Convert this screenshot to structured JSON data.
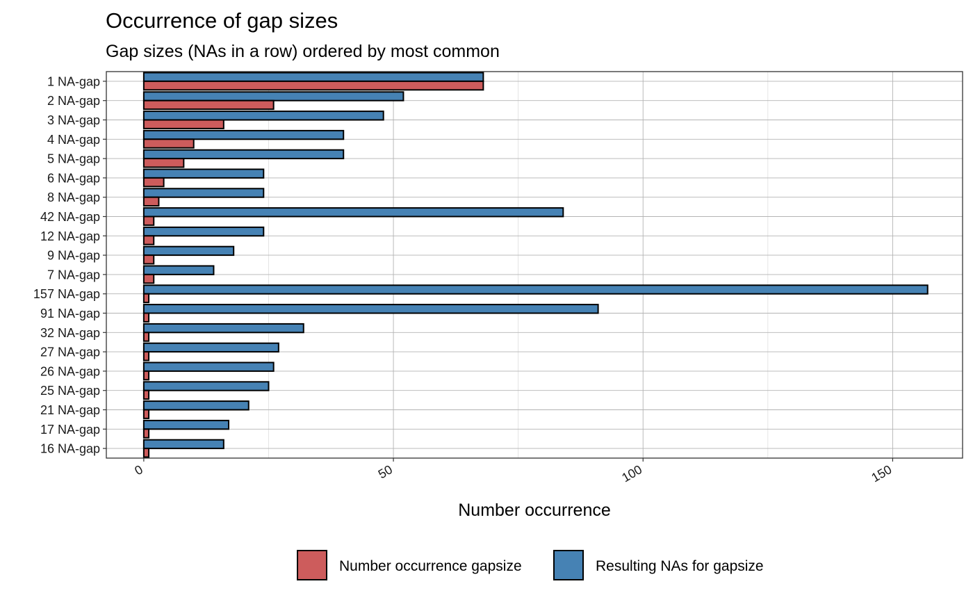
{
  "chart_data": {
    "type": "bar",
    "orientation": "horizontal",
    "title": "Occurrence of gap sizes",
    "subtitle": "Gap sizes (NAs in a row) ordered by most common",
    "xlabel": "Number occurrence",
    "ylabel": "",
    "xlim": [
      -7.5,
      164
    ],
    "x_ticks": [
      0,
      50,
      100,
      150
    ],
    "x_tick_labels": [
      "0",
      "50",
      "100",
      "150"
    ],
    "grid": true,
    "legend_position": "bottom",
    "categories": [
      "1 NA-gap",
      "2 NA-gap",
      "3 NA-gap",
      "4 NA-gap",
      "5 NA-gap",
      "6 NA-gap",
      "8 NA-gap",
      "42 NA-gap",
      "12 NA-gap",
      "9 NA-gap",
      "7 NA-gap",
      "157 NA-gap",
      "91 NA-gap",
      "32 NA-gap",
      "27 NA-gap",
      "26 NA-gap",
      "25 NA-gap",
      "21 NA-gap",
      "17 NA-gap",
      "16 NA-gap"
    ],
    "series": [
      {
        "name": "Number occurrence gapsize",
        "color": "#cd5c5c",
        "values": [
          68,
          26,
          16,
          10,
          8,
          4,
          3,
          2,
          2,
          2,
          2,
          1,
          1,
          1,
          1,
          1,
          1,
          1,
          1,
          1
        ]
      },
      {
        "name": "Resulting NAs for gapsize",
        "color": "#4682b4",
        "values": [
          68,
          52,
          48,
          40,
          40,
          24,
          24,
          84,
          24,
          18,
          14,
          157,
          91,
          32,
          27,
          26,
          25,
          21,
          17,
          16
        ]
      }
    ]
  }
}
